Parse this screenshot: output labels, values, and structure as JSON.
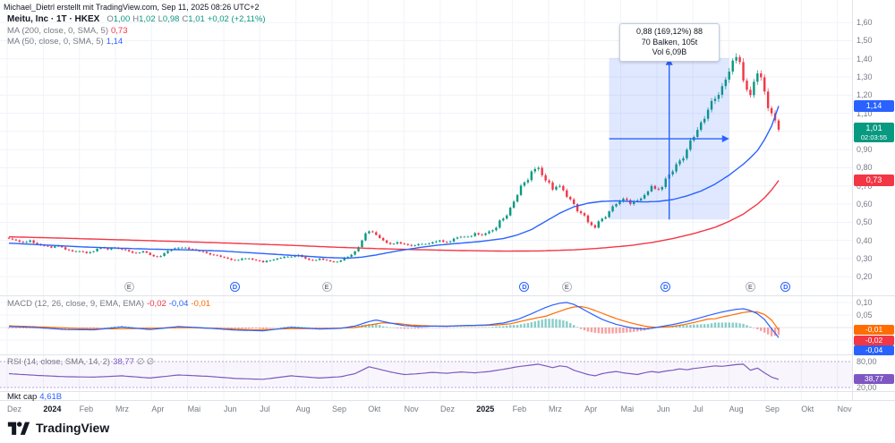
{
  "attribution": "Michael_Dietrl erstellt mit TradingView.com, Sep 11, 2025 08:26 UTC+2",
  "symbol_row": {
    "title": "Meitu, Inc · 1T · HKEX",
    "o_label": "O",
    "o": "1,00",
    "h_label": "H",
    "h": "1,02",
    "l_label": "L",
    "l": "0,98",
    "c_label": "C",
    "c": "1,01",
    "change": "+0,02 (+2,11%)"
  },
  "ma200_row": {
    "label": "MA (200, close, 0, SMA, 5)",
    "value": "0,73"
  },
  "ma50_row": {
    "label": "MA (50, close, 0, SMA, 5)",
    "value": "1,14"
  },
  "macd_row": {
    "label": "MACD (12, 26, close, 9, EMA, EMA)",
    "hist": "-0,02",
    "macd": "-0,04",
    "signal": "-0,01"
  },
  "rsi_row": {
    "label": "RSI (14, close, SMA, 14, 2)",
    "value": "38,77",
    "extra": "∅ ∅"
  },
  "mktcap_row": {
    "label": "Mkt cap",
    "value": "4,61B"
  },
  "measure_label": {
    "line1": "0,88 (169,12%) 88",
    "line2": "70 Balken, 105t",
    "line3": "Vol 6,09B"
  },
  "badges": {
    "ma50": "1,14",
    "last_price": "1,01",
    "countdown": "02:03:55",
    "ma200": "0,73",
    "macd_signal": "-0,01",
    "macd_hist": "-0,02",
    "macd_line": "-0,04",
    "rsi": "38,77"
  },
  "axes": {
    "price_labels": [
      "1,60",
      "1,50",
      "1,40",
      "1,30",
      "1,20",
      "1,10",
      "0,90",
      "0,80",
      "0,70",
      "0,60",
      "0,50",
      "0,40",
      "0,30",
      "0,20"
    ],
    "macd_labels": [
      "0,10",
      "0,05"
    ],
    "rsi_labels": [
      "80,00",
      "20,00"
    ],
    "months": [
      "Dez",
      "2024",
      "Feb",
      "Mrz",
      "Apr",
      "Mai",
      "Jun",
      "Jul",
      "Aug",
      "Sep",
      "Okt",
      "Nov",
      "Dez",
      "2025",
      "Feb",
      "Mrz",
      "Apr",
      "Mai",
      "Jun",
      "Jul",
      "Aug",
      "Sep",
      "Okt",
      "Nov"
    ]
  },
  "footer": {
    "brand": "TradingView"
  },
  "colors": {
    "up": "#089981",
    "down": "#f23645",
    "ma50": "#2962ff",
    "ma200": "#f23645",
    "macd": "#2962ff",
    "signal": "#ff6d00",
    "hist_up": "#26a69a",
    "hist_down": "#ef5350",
    "rsi": "#7e57c2",
    "accent": "#2962ff",
    "badge_last": "#089981",
    "badge_orange": "#ff6d00",
    "badge_purple": "#7e57c2"
  },
  "chart_data": {
    "type": "candlestick",
    "title": "Meitu, Inc · 1T · HKEX",
    "timeframe": "1T",
    "exchange": "HKEX",
    "x_axis": {
      "start": "Dez 2023",
      "end": "Nov 2025"
    },
    "y_axis": {
      "range": [
        0.2,
        1.6
      ],
      "tick_step": 0.1
    },
    "last_bar": {
      "open": 1.0,
      "high": 1.02,
      "low": 0.98,
      "close": 1.01,
      "change": 0.02,
      "change_pct": 2.11
    },
    "closes": [
      0.41,
      0.4,
      0.39,
      0.4,
      0.38,
      0.37,
      0.36,
      0.37,
      0.35,
      0.34,
      0.34,
      0.33,
      0.34,
      0.36,
      0.35,
      0.36,
      0.35,
      0.34,
      0.33,
      0.34,
      0.32,
      0.31,
      0.33,
      0.35,
      0.36,
      0.36,
      0.35,
      0.34,
      0.33,
      0.32,
      0.31,
      0.3,
      0.29,
      0.3,
      0.3,
      0.29,
      0.28,
      0.29,
      0.3,
      0.31,
      0.31,
      0.32,
      0.3,
      0.29,
      0.3,
      0.29,
      0.28,
      0.29,
      0.31,
      0.34,
      0.4,
      0.45,
      0.43,
      0.4,
      0.38,
      0.39,
      0.38,
      0.37,
      0.38,
      0.38,
      0.39,
      0.4,
      0.39,
      0.41,
      0.42,
      0.42,
      0.44,
      0.43,
      0.45,
      0.47,
      0.52,
      0.58,
      0.65,
      0.72,
      0.78,
      0.8,
      0.73,
      0.68,
      0.7,
      0.64,
      0.6,
      0.55,
      0.5,
      0.47,
      0.52,
      0.56,
      0.6,
      0.63,
      0.6,
      0.62,
      0.65,
      0.7,
      0.68,
      0.74,
      0.78,
      0.84,
      0.9,
      0.97,
      1.05,
      1.12,
      1.18,
      1.25,
      1.33,
      1.41,
      1.28,
      1.2,
      1.32,
      1.22,
      1.1,
      1.01
    ],
    "overlays": {
      "ma50": {
        "period": 50,
        "last": 1.14,
        "anchors": [
          [
            0,
            0.385
          ],
          [
            5,
            0.375
          ],
          [
            10,
            0.365
          ],
          [
            15,
            0.358
          ],
          [
            20,
            0.352
          ],
          [
            25,
            0.348
          ],
          [
            30,
            0.342
          ],
          [
            35,
            0.33
          ],
          [
            40,
            0.318
          ],
          [
            45,
            0.306
          ],
          [
            48,
            0.302
          ],
          [
            50,
            0.308
          ],
          [
            52,
            0.32
          ],
          [
            55,
            0.342
          ],
          [
            58,
            0.36
          ],
          [
            61,
            0.375
          ],
          [
            64,
            0.385
          ],
          [
            67,
            0.395
          ],
          [
            70,
            0.41
          ],
          [
            72,
            0.43
          ],
          [
            74,
            0.46
          ],
          [
            76,
            0.505
          ],
          [
            78,
            0.55
          ],
          [
            80,
            0.585
          ],
          [
            82,
            0.605
          ],
          [
            84,
            0.615
          ],
          [
            86,
            0.618
          ],
          [
            88,
            0.615
          ],
          [
            90,
            0.612
          ],
          [
            92,
            0.615
          ],
          [
            94,
            0.625
          ],
          [
            96,
            0.645
          ],
          [
            98,
            0.672
          ],
          [
            100,
            0.71
          ],
          [
            102,
            0.76
          ],
          [
            104,
            0.82
          ],
          [
            105,
            0.855
          ],
          [
            106,
            0.895
          ],
          [
            107,
            0.955
          ],
          [
            108,
            1.03
          ],
          [
            109,
            1.14
          ]
        ]
      },
      "ma200": {
        "period": 200,
        "last": 0.73,
        "anchors": [
          [
            0,
            0.42
          ],
          [
            8,
            0.412
          ],
          [
            16,
            0.403
          ],
          [
            24,
            0.394
          ],
          [
            32,
            0.384
          ],
          [
            40,
            0.373
          ],
          [
            46,
            0.363
          ],
          [
            52,
            0.355
          ],
          [
            58,
            0.349
          ],
          [
            64,
            0.344
          ],
          [
            70,
            0.341
          ],
          [
            75,
            0.342
          ],
          [
            80,
            0.348
          ],
          [
            84,
            0.358
          ],
          [
            88,
            0.372
          ],
          [
            91,
            0.388
          ],
          [
            94,
            0.41
          ],
          [
            97,
            0.438
          ],
          [
            100,
            0.472
          ],
          [
            102,
            0.505
          ],
          [
            104,
            0.545
          ],
          [
            106,
            0.6
          ],
          [
            107,
            0.635
          ],
          [
            108,
            0.678
          ],
          [
            109,
            0.73
          ]
        ]
      }
    },
    "indicators": {
      "macd": {
        "params": "12, 26, close, 9, EMA, EMA",
        "last": {
          "hist": -0.02,
          "macd": -0.04,
          "signal": -0.01
        },
        "macd_anchors": [
          [
            0,
            0.004
          ],
          [
            4,
            0
          ],
          [
            8,
            -0.008
          ],
          [
            12,
            -0.009
          ],
          [
            16,
            0.002
          ],
          [
            20,
            -0.008
          ],
          [
            24,
            0.004
          ],
          [
            28,
            -0.002
          ],
          [
            32,
            -0.01
          ],
          [
            36,
            -0.013
          ],
          [
            40,
            0.001
          ],
          [
            44,
            -0.006
          ],
          [
            47,
            -0.003
          ],
          [
            49,
            0.006
          ],
          [
            51,
            0.024
          ],
          [
            52,
            0.03
          ],
          [
            54,
            0.018
          ],
          [
            56,
            0.008
          ],
          [
            58,
            0.004
          ],
          [
            60,
            0.006
          ],
          [
            62,
            0.005
          ],
          [
            64,
            0.008
          ],
          [
            66,
            0.009
          ],
          [
            68,
            0.011
          ],
          [
            70,
            0.018
          ],
          [
            72,
            0.032
          ],
          [
            74,
            0.055
          ],
          [
            75,
            0.068
          ],
          [
            76,
            0.08
          ],
          [
            77,
            0.09
          ],
          [
            78,
            0.097
          ],
          [
            79,
            0.1
          ],
          [
            80,
            0.092
          ],
          [
            81,
            0.078
          ],
          [
            82,
            0.062
          ],
          [
            83,
            0.047
          ],
          [
            84,
            0.033
          ],
          [
            85,
            0.022
          ],
          [
            86,
            0.013
          ],
          [
            87,
            0.006
          ],
          [
            88,
            0
          ],
          [
            89,
            -0.004
          ],
          [
            90,
            -0.006
          ],
          [
            91,
            -0.003
          ],
          [
            92,
            0.002
          ],
          [
            93,
            0.007
          ],
          [
            94,
            0.012
          ],
          [
            95,
            0.018
          ],
          [
            96,
            0.024
          ],
          [
            97,
            0.032
          ],
          [
            98,
            0.04
          ],
          [
            99,
            0.048
          ],
          [
            100,
            0.055
          ],
          [
            101,
            0.062
          ],
          [
            102,
            0.068
          ],
          [
            103,
            0.073
          ],
          [
            104,
            0.075
          ],
          [
            105,
            0.068
          ],
          [
            106,
            0.055
          ],
          [
            107,
            0.032
          ],
          [
            108,
            -0.005
          ],
          [
            109,
            -0.04
          ]
        ],
        "signal_anchors": [
          [
            0,
            0.007
          ],
          [
            5,
            0.002
          ],
          [
            10,
            -0.004
          ],
          [
            15,
            -0.005
          ],
          [
            20,
            -0.003
          ],
          [
            25,
            0
          ],
          [
            30,
            -0.004
          ],
          [
            35,
            -0.009
          ],
          [
            40,
            -0.004
          ],
          [
            45,
            -0.004
          ],
          [
            49,
            0
          ],
          [
            51,
            0.01
          ],
          [
            53,
            0.019
          ],
          [
            55,
            0.016
          ],
          [
            57,
            0.01
          ],
          [
            60,
            0.006
          ],
          [
            63,
            0.006
          ],
          [
            66,
            0.008
          ],
          [
            69,
            0.01
          ],
          [
            71,
            0.015
          ],
          [
            73,
            0.028
          ],
          [
            75,
            0.04
          ],
          [
            76,
            0.045
          ],
          [
            77,
            0.055
          ],
          [
            78,
            0.065
          ],
          [
            79,
            0.075
          ],
          [
            80,
            0.082
          ],
          [
            81,
            0.084
          ],
          [
            82,
            0.078
          ],
          [
            83,
            0.068
          ],
          [
            84,
            0.057
          ],
          [
            85,
            0.046
          ],
          [
            86,
            0.036
          ],
          [
            87,
            0.027
          ],
          [
            88,
            0.019
          ],
          [
            89,
            0.012
          ],
          [
            90,
            0.006
          ],
          [
            91,
            0.002
          ],
          [
            92,
            0.001
          ],
          [
            93,
            0.002
          ],
          [
            94,
            0.005
          ],
          [
            95,
            0.009
          ],
          [
            96,
            0.014
          ],
          [
            97,
            0.02
          ],
          [
            98,
            0.027
          ],
          [
            99,
            0.034
          ],
          [
            100,
            0.035
          ],
          [
            101,
            0.042
          ],
          [
            102,
            0.048
          ],
          [
            103,
            0.054
          ],
          [
            104,
            0.06
          ],
          [
            105,
            0.064
          ],
          [
            106,
            0.062
          ],
          [
            107,
            0.052
          ],
          [
            108,
            0.03
          ],
          [
            109,
            -0.01
          ]
        ]
      },
      "rsi": {
        "params": "14, close, SMA, 14, 2",
        "last": 38.77,
        "levels": [
          80,
          20
        ],
        "anchors": [
          [
            0,
            52
          ],
          [
            4,
            48
          ],
          [
            8,
            45
          ],
          [
            12,
            44
          ],
          [
            16,
            47
          ],
          [
            20,
            42
          ],
          [
            24,
            49
          ],
          [
            28,
            46
          ],
          [
            32,
            41
          ],
          [
            36,
            39
          ],
          [
            40,
            47
          ],
          [
            44,
            42
          ],
          [
            47,
            45
          ],
          [
            49,
            52
          ],
          [
            51,
            68
          ],
          [
            52,
            64
          ],
          [
            54,
            56
          ],
          [
            56,
            50
          ],
          [
            58,
            52
          ],
          [
            60,
            55
          ],
          [
            62,
            53
          ],
          [
            64,
            56
          ],
          [
            66,
            54
          ],
          [
            68,
            57
          ],
          [
            70,
            62
          ],
          [
            72,
            68
          ],
          [
            74,
            72
          ],
          [
            75,
            74
          ],
          [
            76,
            70
          ],
          [
            77,
            66
          ],
          [
            78,
            70
          ],
          [
            79,
            68
          ],
          [
            80,
            60
          ],
          [
            81,
            55
          ],
          [
            82,
            50
          ],
          [
            83,
            47
          ],
          [
            84,
            52
          ],
          [
            85,
            55
          ],
          [
            86,
            57
          ],
          [
            87,
            54
          ],
          [
            88,
            52
          ],
          [
            89,
            50
          ],
          [
            90,
            54
          ],
          [
            91,
            57
          ],
          [
            92,
            55
          ],
          [
            93,
            58
          ],
          [
            94,
            60
          ],
          [
            95,
            63
          ],
          [
            96,
            61
          ],
          [
            97,
            64
          ],
          [
            98,
            66
          ],
          [
            99,
            68
          ],
          [
            100,
            70
          ],
          [
            101,
            69
          ],
          [
            102,
            71
          ],
          [
            103,
            73
          ],
          [
            104,
            74
          ],
          [
            105,
            60
          ],
          [
            106,
            65
          ],
          [
            107,
            54
          ],
          [
            108,
            44
          ],
          [
            109,
            38.77
          ]
        ]
      },
      "mkt_cap": {
        "last": "4,61B"
      }
    },
    "measure_box": {
      "bar_from": 85,
      "bar_to": 102,
      "price_from": 0.515,
      "price_to": 1.405,
      "label": [
        "0,88 (169,12%) 88",
        "70 Balken, 105t",
        "Vol 6,09B"
      ]
    },
    "events": [
      {
        "t": "E",
        "bar": 17
      },
      {
        "t": "D",
        "bar": 32
      },
      {
        "t": "E",
        "bar": 45
      },
      {
        "t": "D",
        "bar": 73
      },
      {
        "t": "E",
        "bar": 79
      },
      {
        "t": "D",
        "bar": 93
      },
      {
        "t": "E",
        "bar": 105
      },
      {
        "t": "D",
        "bar": 110
      }
    ]
  }
}
